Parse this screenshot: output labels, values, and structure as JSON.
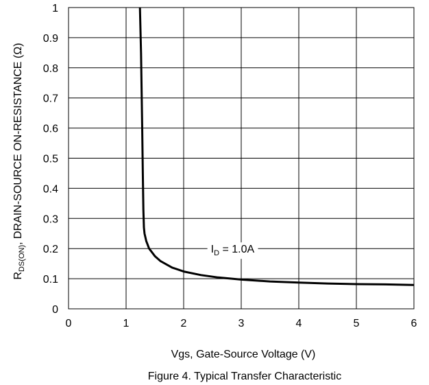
{
  "chart_data": {
    "type": "line",
    "xlabel": "Vgs, Gate-Source Voltage (V)",
    "ylabel": {
      "prefix": "R",
      "subscript": "DS(ON)",
      "suffix": ", DRAIN-SOURCE ON-RESISTANCE (Ω)"
    },
    "caption": "Figure 4. Typical Transfer Characteristic",
    "xlim": [
      0,
      6
    ],
    "ylim": [
      0,
      1
    ],
    "xticks": [
      "0",
      "1",
      "2",
      "3",
      "4",
      "5",
      "6"
    ],
    "yticks": [
      "0",
      "0.1",
      "0.2",
      "0.3",
      "0.4",
      "0.5",
      "0.6",
      "0.7",
      "0.8",
      "0.9",
      "1"
    ],
    "grid": true,
    "series": [
      {
        "label": {
          "prefix": "I",
          "subscript": "D",
          "suffix": " = 1.0A"
        },
        "x": [
          1.24,
          1.26,
          1.28,
          1.29,
          1.3,
          1.31,
          1.32,
          1.35,
          1.4,
          1.5,
          1.6,
          1.8,
          2.0,
          2.3,
          2.6,
          3.0,
          3.5,
          4.0,
          4.5,
          5.0,
          5.5,
          6.0
        ],
        "y": [
          1.0,
          0.85,
          0.6,
          0.45,
          0.33,
          0.27,
          0.25,
          0.225,
          0.2,
          0.175,
          0.158,
          0.137,
          0.124,
          0.112,
          0.104,
          0.097,
          0.091,
          0.087,
          0.084,
          0.082,
          0.081,
          0.079
        ]
      }
    ]
  }
}
